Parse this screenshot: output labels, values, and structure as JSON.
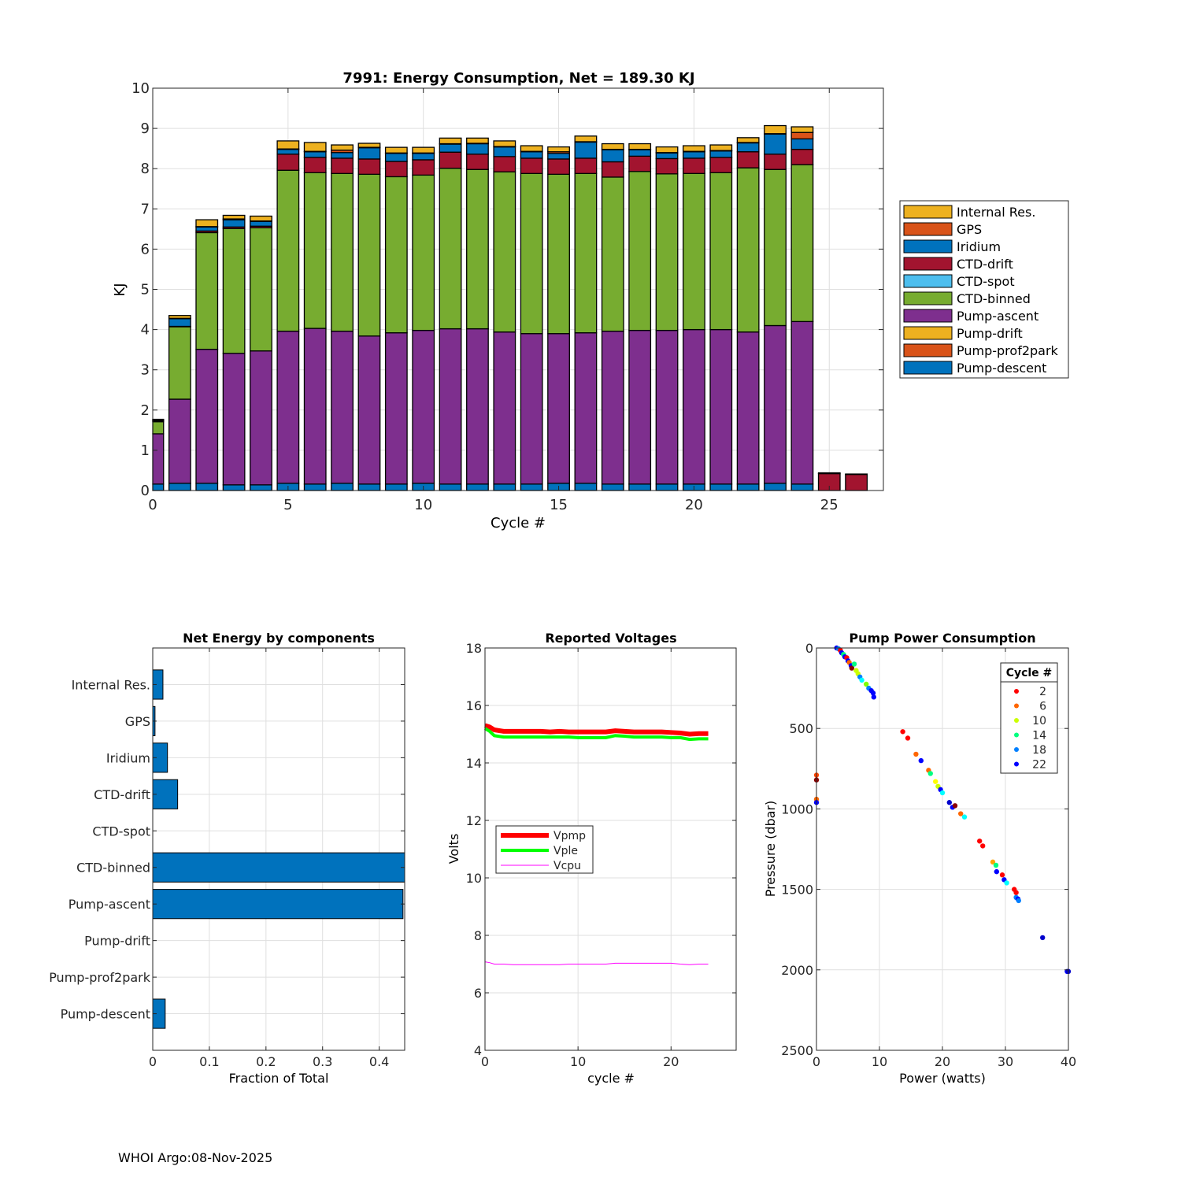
{
  "footer": "WHOI Argo:08-Nov-2025",
  "chart_data": [
    {
      "type": "bar",
      "stacked": true,
      "title": "7991: Energy Consumption,  Net = 189.30 KJ",
      "xlabel": "Cycle #",
      "ylabel": "KJ",
      "xlim": [
        0,
        27
      ],
      "ylim": [
        0,
        10
      ],
      "xticks": [
        0,
        5,
        10,
        15,
        20,
        25
      ],
      "yticks": [
        0,
        1,
        2,
        3,
        4,
        5,
        6,
        7,
        8,
        9,
        10
      ],
      "grid": true,
      "legend_position": "outside-right",
      "legend": [
        "Internal Res.",
        "GPS",
        "Iridium",
        "CTD-drift",
        "CTD-spot",
        "CTD-binned",
        "Pump-ascent",
        "Pump-drift",
        "Pump-prof2park",
        "Pump-descent"
      ],
      "colors": {
        "Internal Res.": "#EDB120",
        "GPS": "#D95319",
        "Iridium": "#0072BD",
        "CTD-drift": "#A2142F",
        "CTD-spot": "#4DBEEE",
        "CTD-binned": "#77AC30",
        "Pump-ascent": "#7E2F8E",
        "Pump-drift": "#EDB120",
        "Pump-prof2park": "#D95319",
        "Pump-descent": "#0072BD"
      },
      "stack_order": [
        "Pump-descent",
        "Pump-prof2park",
        "Pump-drift",
        "Pump-ascent",
        "CTD-binned",
        "CTD-spot",
        "CTD-drift",
        "Iridium",
        "GPS",
        "Internal Res."
      ],
      "x": [
        0,
        1,
        2,
        3,
        4,
        5,
        6,
        7,
        8,
        9,
        10,
        11,
        12,
        13,
        14,
        15,
        16,
        17,
        18,
        19,
        20,
        21,
        22,
        23,
        24,
        25,
        26
      ],
      "series": [
        {
          "name": "Pump-descent",
          "values": [
            0.16,
            0.18,
            0.18,
            0.14,
            0.14,
            0.18,
            0.16,
            0.18,
            0.16,
            0.16,
            0.18,
            0.16,
            0.16,
            0.16,
            0.16,
            0.18,
            0.18,
            0.16,
            0.16,
            0.16,
            0.16,
            0.16,
            0.16,
            0.18,
            0.16,
            0,
            0
          ]
        },
        {
          "name": "Pump-prof2park",
          "values": [
            0,
            0,
            0,
            0,
            0,
            0,
            0,
            0,
            0,
            0,
            0,
            0,
            0,
            0,
            0,
            0,
            0,
            0,
            0,
            0,
            0,
            0,
            0,
            0,
            0,
            0,
            0
          ]
        },
        {
          "name": "Pump-drift",
          "values": [
            0,
            0,
            0,
            0,
            0,
            0,
            0,
            0,
            0,
            0,
            0,
            0,
            0,
            0,
            0,
            0,
            0,
            0,
            0,
            0,
            0,
            0,
            0,
            0,
            0,
            0,
            0
          ]
        },
        {
          "name": "Pump-ascent",
          "values": [
            1.25,
            2.09,
            3.33,
            3.27,
            3.33,
            3.78,
            3.87,
            3.78,
            3.68,
            3.76,
            3.8,
            3.86,
            3.86,
            3.78,
            3.74,
            3.72,
            3.74,
            3.8,
            3.82,
            3.82,
            3.84,
            3.84,
            3.78,
            3.92,
            4.04,
            0,
            0
          ]
        },
        {
          "name": "CTD-binned",
          "values": [
            0.3,
            1.8,
            2.9,
            3.1,
            3.06,
            4.0,
            3.87,
            3.92,
            4.02,
            3.88,
            3.86,
            3.99,
            3.96,
            3.98,
            3.98,
            3.96,
            3.96,
            3.83,
            3.95,
            3.89,
            3.88,
            3.9,
            4.08,
            3.88,
            3.9,
            0,
            0
          ]
        },
        {
          "name": "CTD-spot",
          "values": [
            0,
            0,
            0,
            0,
            0,
            0,
            0,
            0,
            0,
            0,
            0,
            0,
            0,
            0,
            0,
            0,
            0,
            0,
            0,
            0,
            0,
            0,
            0,
            0,
            0,
            0,
            0
          ]
        },
        {
          "name": "CTD-drift",
          "values": [
            0.02,
            0.01,
            0.04,
            0.04,
            0.04,
            0.4,
            0.38,
            0.38,
            0.38,
            0.38,
            0.38,
            0.4,
            0.38,
            0.38,
            0.38,
            0.38,
            0.38,
            0.38,
            0.38,
            0.38,
            0.38,
            0.38,
            0.4,
            0.38,
            0.38,
            0.42,
            0.4
          ]
        },
        {
          "name": "Iridium",
          "values": [
            0.02,
            0.19,
            0.1,
            0.18,
            0.12,
            0.12,
            0.14,
            0.14,
            0.28,
            0.2,
            0.16,
            0.2,
            0.26,
            0.24,
            0.16,
            0.14,
            0.4,
            0.3,
            0.16,
            0.14,
            0.16,
            0.16,
            0.22,
            0.5,
            0.26,
            0,
            0
          ]
        },
        {
          "name": "GPS",
          "values": [
            0.01,
            0.01,
            0.01,
            0.02,
            0.01,
            0.01,
            0.01,
            0.06,
            0.01,
            0.01,
            0.01,
            0.01,
            0.01,
            0.01,
            0.01,
            0.04,
            0.01,
            0.01,
            0.01,
            0.01,
            0.01,
            0.01,
            0.01,
            0.01,
            0.16,
            0.02,
            0.01
          ]
        },
        {
          "name": "Internal Res.",
          "values": [
            0.01,
            0.07,
            0.17,
            0.09,
            0.12,
            0.2,
            0.22,
            0.13,
            0.1,
            0.14,
            0.14,
            0.14,
            0.13,
            0.14,
            0.14,
            0.12,
            0.14,
            0.14,
            0.14,
            0.14,
            0.14,
            0.14,
            0.12,
            0.2,
            0.14,
            0,
            0
          ]
        }
      ]
    },
    {
      "type": "bar",
      "orientation": "horizontal",
      "title": "Net Energy by components",
      "xlabel": "Fraction of Total",
      "ylabel": "",
      "xlim": [
        0,
        0.445
      ],
      "xticks": [
        0,
        0.1,
        0.2,
        0.3,
        0.4
      ],
      "xtick_labels": [
        "0",
        "0.1",
        "0.2",
        "0.3",
        "0.4"
      ],
      "grid": true,
      "color": "#0072BD",
      "categories": [
        "Internal Res.",
        "GPS",
        "Iridium",
        "CTD-drift",
        "CTD-spot",
        "CTD-binned",
        "Pump-ascent",
        "Pump-drift",
        "Pump-prof2park",
        "Pump-descent"
      ],
      "values": [
        0.018,
        0.004,
        0.026,
        0.044,
        0.0,
        0.445,
        0.442,
        0.0,
        0.0,
        0.022
      ]
    },
    {
      "type": "line",
      "title": "Reported Voltages",
      "xlabel": "cycle #",
      "ylabel": "Volts",
      "xlim": [
        0,
        27
      ],
      "ylim": [
        4,
        18
      ],
      "xticks": [
        0,
        10,
        20
      ],
      "yticks": [
        4,
        6,
        8,
        10,
        12,
        14,
        16,
        18
      ],
      "grid": true,
      "legend_position": "middle-left",
      "x": [
        0,
        0.5,
        1,
        2,
        3,
        4,
        5,
        6,
        7,
        8,
        9,
        10,
        11,
        12,
        13,
        14,
        15,
        16,
        17,
        18,
        19,
        20,
        21,
        22,
        23,
        24
      ],
      "series": [
        {
          "name": "Vpmp",
          "color": "#FF0000",
          "values": [
            15.3,
            15.25,
            15.15,
            15.1,
            15.1,
            15.1,
            15.1,
            15.1,
            15.08,
            15.1,
            15.08,
            15.08,
            15.08,
            15.08,
            15.08,
            15.12,
            15.1,
            15.08,
            15.08,
            15.08,
            15.08,
            15.06,
            15.04,
            15.0,
            15.02,
            15.02
          ]
        },
        {
          "name": "Vple",
          "color": "#00FF00",
          "values": [
            15.2,
            15.1,
            14.95,
            14.9,
            14.9,
            14.9,
            14.9,
            14.9,
            14.9,
            14.9,
            14.9,
            14.88,
            14.88,
            14.88,
            14.88,
            14.95,
            14.93,
            14.9,
            14.9,
            14.9,
            14.9,
            14.88,
            14.88,
            14.82,
            14.84,
            14.84
          ]
        },
        {
          "name": "Vcpu",
          "color": "#FF00FF",
          "values": [
            7.08,
            7.05,
            7.0,
            7.0,
            6.98,
            6.98,
            6.98,
            6.98,
            6.98,
            6.98,
            7.0,
            7.0,
            7.0,
            7.0,
            7.0,
            7.03,
            7.03,
            7.03,
            7.03,
            7.03,
            7.03,
            7.03,
            7.0,
            6.98,
            7.0,
            7.0
          ]
        }
      ]
    },
    {
      "type": "scatter",
      "title": "Pump Power Consumption",
      "xlabel": "Power (watts)",
      "ylabel": "Pressure (dbar)",
      "xlim": [
        0,
        40
      ],
      "ylim": [
        0,
        2500
      ],
      "y_reversed": true,
      "xticks": [
        0,
        10,
        20,
        30,
        40
      ],
      "yticks": [
        0,
        500,
        1000,
        1500,
        2000,
        2500
      ],
      "grid": true,
      "legend_title": "Cycle #",
      "legend_position": "top-right",
      "legend": [
        {
          "label": "2",
          "color": "#FF0000"
        },
        {
          "label": "6",
          "color": "#FF6600"
        },
        {
          "label": "10",
          "color": "#CCFF00"
        },
        {
          "label": "14",
          "color": "#00FF80"
        },
        {
          "label": "18",
          "color": "#0080FF"
        },
        {
          "label": "22",
          "color": "#0000FF"
        }
      ],
      "points": [
        {
          "x": 3.2,
          "y": 0,
          "c": "#0000FF"
        },
        {
          "x": 3.5,
          "y": 5,
          "c": "#0080FF"
        },
        {
          "x": 3.8,
          "y": 15,
          "c": "#FF0000"
        },
        {
          "x": 4.0,
          "y": 30,
          "c": "#0000FF"
        },
        {
          "x": 4.3,
          "y": 40,
          "c": "#00FF80"
        },
        {
          "x": 4.5,
          "y": 55,
          "c": "#0000FF"
        },
        {
          "x": 4.8,
          "y": 60,
          "c": "#FF0000"
        },
        {
          "x": 5.0,
          "y": 80,
          "c": "#0000FF"
        },
        {
          "x": 5.2,
          "y": 90,
          "c": "#FF6600"
        },
        {
          "x": 5.5,
          "y": 110,
          "c": "#0000FF"
        },
        {
          "x": 5.6,
          "y": 125,
          "c": "#8B0000"
        },
        {
          "x": 6.0,
          "y": 100,
          "c": "#00FF80"
        },
        {
          "x": 6.3,
          "y": 140,
          "c": "#CCFF00"
        },
        {
          "x": 6.6,
          "y": 160,
          "c": "#CCFF00"
        },
        {
          "x": 6.9,
          "y": 180,
          "c": "#0080FF"
        },
        {
          "x": 7.2,
          "y": 200,
          "c": "#00FFFF"
        },
        {
          "x": 7.9,
          "y": 225,
          "c": "#80FF00"
        },
        {
          "x": 8.3,
          "y": 250,
          "c": "#0080FF"
        },
        {
          "x": 8.7,
          "y": 265,
          "c": "#0000FF"
        },
        {
          "x": 9.0,
          "y": 280,
          "c": "#0000FF"
        },
        {
          "x": 9.1,
          "y": 305,
          "c": "#0000FF"
        },
        {
          "x": 13.7,
          "y": 520,
          "c": "#FF0000"
        },
        {
          "x": 14.5,
          "y": 560,
          "c": "#FF0000"
        },
        {
          "x": 15.8,
          "y": 660,
          "c": "#FF6600"
        },
        {
          "x": 16.6,
          "y": 700,
          "c": "#0000FF"
        },
        {
          "x": 17.8,
          "y": 760,
          "c": "#FF6600"
        },
        {
          "x": 18.1,
          "y": 780,
          "c": "#00FF80"
        },
        {
          "x": 18.9,
          "y": 830,
          "c": "#FFFF00"
        },
        {
          "x": 19.3,
          "y": 860,
          "c": "#CCFF00"
        },
        {
          "x": 19.7,
          "y": 880,
          "c": "#0000FF"
        },
        {
          "x": 20.0,
          "y": 900,
          "c": "#00FFFF"
        },
        {
          "x": 21.1,
          "y": 960,
          "c": "#0000CC"
        },
        {
          "x": 21.6,
          "y": 990,
          "c": "#0000FF"
        },
        {
          "x": 22.0,
          "y": 980,
          "c": "#8B0000"
        },
        {
          "x": 22.9,
          "y": 1030,
          "c": "#FF6600"
        },
        {
          "x": 23.5,
          "y": 1050,
          "c": "#00FFFF"
        },
        {
          "x": 25.9,
          "y": 1200,
          "c": "#FF0000"
        },
        {
          "x": 26.4,
          "y": 1230,
          "c": "#FF0000"
        },
        {
          "x": 28.0,
          "y": 1330,
          "c": "#FFA500"
        },
        {
          "x": 28.5,
          "y": 1350,
          "c": "#00FF80"
        },
        {
          "x": 28.6,
          "y": 1390,
          "c": "#0000FF"
        },
        {
          "x": 29.5,
          "y": 1410,
          "c": "#FF0000"
        },
        {
          "x": 29.8,
          "y": 1440,
          "c": "#0000FF"
        },
        {
          "x": 30.2,
          "y": 1460,
          "c": "#00FFFF"
        },
        {
          "x": 31.4,
          "y": 1500,
          "c": "#FF0000"
        },
        {
          "x": 31.7,
          "y": 1520,
          "c": "#FF0000"
        },
        {
          "x": 31.7,
          "y": 1550,
          "c": "#0080FF"
        },
        {
          "x": 32.0,
          "y": 1560,
          "c": "#0000FF"
        },
        {
          "x": 32.1,
          "y": 1570,
          "c": "#0080FF"
        },
        {
          "x": 35.9,
          "y": 1800,
          "c": "#0000CC"
        },
        {
          "x": 39.8,
          "y": 2010,
          "c": "#0000FF"
        },
        {
          "x": 40.0,
          "y": 2010,
          "c": "#0000CC"
        },
        {
          "x": 0.0,
          "y": 790,
          "c": "#FF4500"
        },
        {
          "x": 0.0,
          "y": 820,
          "c": "#8B0000"
        },
        {
          "x": 0.0,
          "y": 940,
          "c": "#FF6600"
        },
        {
          "x": 0.0,
          "y": 960,
          "c": "#0000FF"
        }
      ]
    }
  ]
}
